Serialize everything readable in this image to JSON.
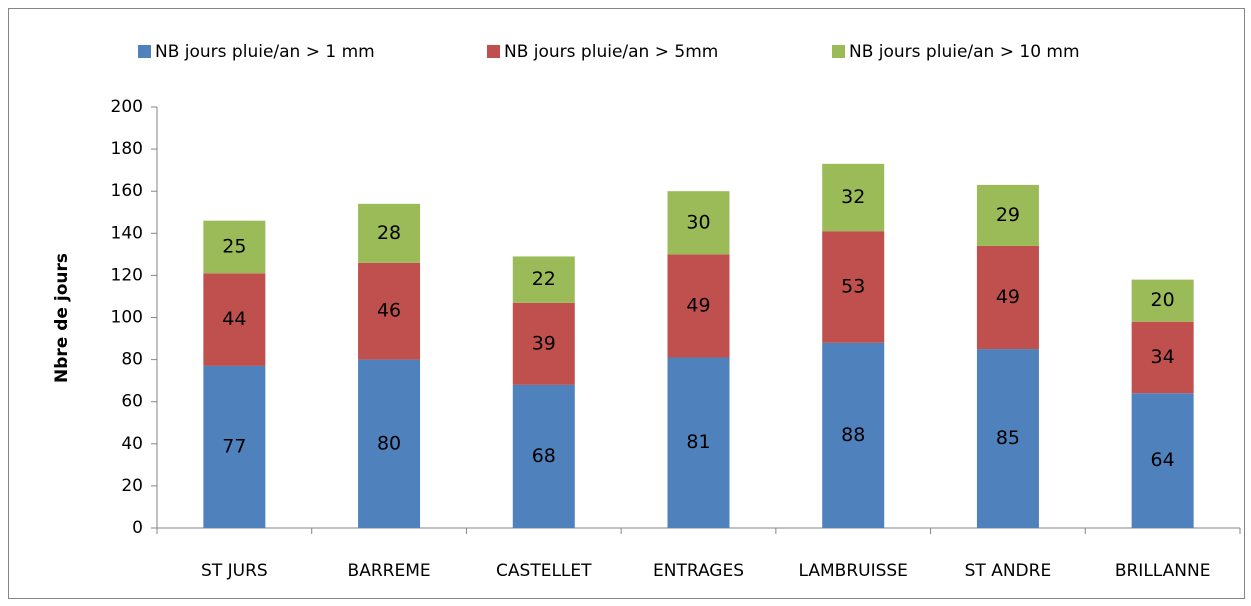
{
  "chart_data": {
    "type": "stacked_bar",
    "y_label": "Nbre de jours",
    "categories": [
      "ST JURS",
      "BARREME",
      "CASTELLET",
      "ENTRAGES",
      "LAMBRUISSE",
      "ST ANDRE",
      "BRILLANNE"
    ],
    "series": [
      {
        "name": "NB jours pluie/an > 1 mm",
        "color": "#4f81bd",
        "values": [
          77,
          80,
          68,
          81,
          88,
          85,
          64
        ]
      },
      {
        "name": "NB jours pluie/an > 5mm",
        "color": "#c0504d",
        "values": [
          44,
          46,
          39,
          49,
          53,
          49,
          34
        ]
      },
      {
        "name": "NB jours pluie/an > 10 mm",
        "color": "#9bbb59",
        "values": [
          25,
          28,
          22,
          30,
          32,
          29,
          20
        ]
      }
    ],
    "ylim": [
      0,
      200
    ],
    "yticks": [
      0,
      20,
      40,
      60,
      80,
      100,
      120,
      140,
      160,
      180,
      200
    ],
    "legend": "top",
    "grid": false
  }
}
